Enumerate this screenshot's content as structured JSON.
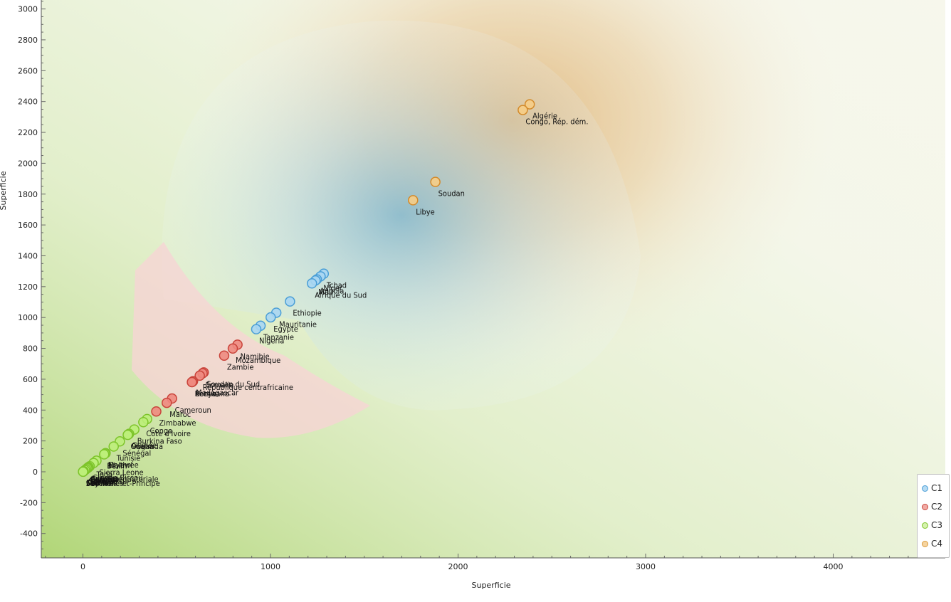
{
  "chart_data": {
    "type": "scatter",
    "title": "",
    "xlabel": "Superficie",
    "ylabel": "Superficie",
    "xlim": [
      -220,
      4640
    ],
    "ylim": [
      -560,
      3080
    ],
    "x_ticks": [
      0,
      1000,
      2000,
      3000,
      4000
    ],
    "y_ticks": [
      -400,
      -200,
      0,
      200,
      400,
      600,
      800,
      1000,
      1200,
      1400,
      1600,
      1800,
      2000,
      2200,
      2400,
      2600,
      2800,
      3000
    ],
    "legend_position": "bottom-right",
    "series": [
      {
        "name": "C1",
        "color": "#5aaee0",
        "points": [
          {
            "x": 1284,
            "y": 1284,
            "label": "Tchad"
          },
          {
            "x": 1267,
            "y": 1267,
            "label": "Niger"
          },
          {
            "x": 1247,
            "y": 1247,
            "label": "Angola"
          },
          {
            "x": 1240,
            "y": 1240,
            "label": "Mali"
          },
          {
            "x": 1221,
            "y": 1221,
            "label": "Afrique du Sud"
          },
          {
            "x": 1104,
            "y": 1104,
            "label": "Ethiopie"
          },
          {
            "x": 1031,
            "y": 1031,
            "label": "Mauritanie"
          },
          {
            "x": 1001,
            "y": 1001,
            "label": "Egypte"
          },
          {
            "x": 947,
            "y": 947,
            "label": "Tanzanie"
          },
          {
            "x": 924,
            "y": 924,
            "label": "Nigeria"
          }
        ]
      },
      {
        "name": "C2",
        "color": "#e8594f",
        "points": [
          {
            "x": 824,
            "y": 824,
            "label": "Namibie"
          },
          {
            "x": 799,
            "y": 799,
            "label": "Mozambique"
          },
          {
            "x": 753,
            "y": 753,
            "label": "Zambie"
          },
          {
            "x": 644,
            "y": 644,
            "label": "Soudan du Sud"
          },
          {
            "x": 638,
            "y": 638,
            "label": "Somalie"
          },
          {
            "x": 623,
            "y": 623,
            "label": "République centrafricaine"
          },
          {
            "x": 587,
            "y": 587,
            "label": "Madagascar"
          },
          {
            "x": 582,
            "y": 582,
            "label": "Kenya"
          },
          {
            "x": 581,
            "y": 581,
            "label": "Botswana"
          },
          {
            "x": 475,
            "y": 475,
            "label": "Cameroun"
          },
          {
            "x": 447,
            "y": 447,
            "label": "Maroc"
          },
          {
            "x": 391,
            "y": 391,
            "label": "Zimbabwe"
          }
        ]
      },
      {
        "name": "C3",
        "color": "#9ae03a",
        "points": [
          {
            "x": 342,
            "y": 342,
            "label": "Congo"
          },
          {
            "x": 322,
            "y": 322,
            "label": "Côte d'Ivoire"
          },
          {
            "x": 274,
            "y": 274,
            "label": "Burkina Faso"
          },
          {
            "x": 246,
            "y": 246,
            "label": "Guinée"
          },
          {
            "x": 241,
            "y": 241,
            "label": "Ouganda"
          },
          {
            "x": 239,
            "y": 239,
            "label": "Ghana"
          },
          {
            "x": 197,
            "y": 197,
            "label": "Sénégal"
          },
          {
            "x": 164,
            "y": 164,
            "label": "Tunisie"
          },
          {
            "x": 121,
            "y": 121,
            "label": "Erythrée"
          },
          {
            "x": 118,
            "y": 118,
            "label": "Malawi"
          },
          {
            "x": 113,
            "y": 113,
            "label": "Bénin"
          },
          {
            "x": 72,
            "y": 72,
            "label": "Sierra Leone"
          },
          {
            "x": 57,
            "y": 57,
            "label": "Togo"
          },
          {
            "x": 36,
            "y": 36,
            "label": "Guinée-Bissau"
          },
          {
            "x": 30,
            "y": 30,
            "label": "Lesotho"
          },
          {
            "x": 28,
            "y": 28,
            "label": "Guinée équatoriale"
          },
          {
            "x": 26,
            "y": 26,
            "label": "Burundi"
          },
          {
            "x": 26,
            "y": 26,
            "label": "Rwanda"
          },
          {
            "x": 23,
            "y": 23,
            "label": "Djibouti"
          },
          {
            "x": 17,
            "y": 17,
            "label": "Swaziland"
          },
          {
            "x": 11,
            "y": 11,
            "label": "Gambie"
          },
          {
            "x": 4,
            "y": 4,
            "label": "Cap-Vert"
          },
          {
            "x": 2,
            "y": 2,
            "label": "Comores"
          },
          {
            "x": 2,
            "y": 2,
            "label": "Maurice"
          },
          {
            "x": 1,
            "y": 1,
            "label": "São Tomé-et-Principe"
          },
          {
            "x": 0.5,
            "y": 0.5,
            "label": "Seychelles"
          }
        ]
      },
      {
        "name": "C4",
        "color": "#f0b450",
        "points": [
          {
            "x": 2382,
            "y": 2382,
            "label": "Algérie"
          },
          {
            "x": 2345,
            "y": 2345,
            "label": "Congo, Rép. dém."
          },
          {
            "x": 1879,
            "y": 1879,
            "label": "Soudan"
          },
          {
            "x": 1760,
            "y": 1760,
            "label": "Libye"
          }
        ]
      }
    ]
  }
}
